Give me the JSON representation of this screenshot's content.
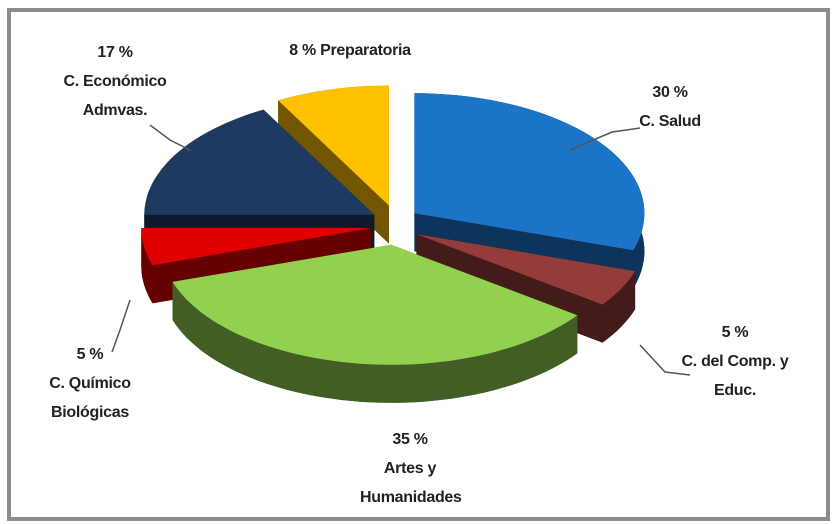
{
  "chart_data": {
    "type": "pie3d",
    "categories": [
      "C. Salud",
      "C. del Comp. y Educ.",
      "Artes y Humanidades",
      "C. Químico Biológicas",
      "C. Económico Admvas.",
      "Preparatoria"
    ],
    "values": [
      30,
      5,
      35,
      5,
      17,
      8
    ],
    "value_labels": [
      "30 %",
      "5 %",
      "35 %",
      "5 %",
      "17 %",
      "8 %"
    ],
    "colors": [
      "#1c74c9",
      "#943c3c",
      "#92d050",
      "#e00000",
      "#1f3a60",
      "#ffc000"
    ]
  }
}
